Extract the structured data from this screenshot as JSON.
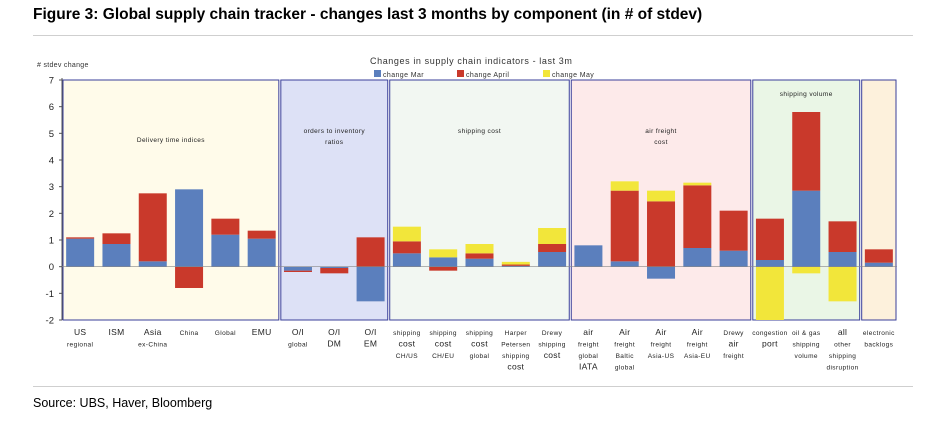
{
  "figure": {
    "title": "Figure 3: Global supply chain tracker - changes last 3 months by component (in # of stdev)",
    "source": "Source: UBS, Haver, Bloomberg"
  },
  "chart_data": {
    "type": "bar",
    "stacked": true,
    "title": "Changes in supply chain indicators - last 3m",
    "ylabel": "# stdev change",
    "xlabel": "",
    "ylim": [
      -2,
      7
    ],
    "yticks": [
      -2,
      -1,
      0,
      1,
      2,
      3,
      4,
      5,
      6,
      7
    ],
    "legend_position": "top-center",
    "categories": [
      "US regional",
      "ISM",
      "Asia ex-China",
      "China",
      "Global",
      "EMU",
      "O/I global",
      "O/I DM",
      "O/I EM",
      "shipping cost CH/US",
      "shipping cost CH/EU",
      "shipping cost global",
      "Harper Petersen shipping cost",
      "Drewy shipping cost",
      "air freight global IATA",
      "Air freight Baltic global",
      "Air freight Asia-US",
      "Air freight Asia-EU",
      "Drewy air freight",
      "congestion port",
      "oil & gas shipping volume",
      "all other shipping disruption",
      "electronic backlogs"
    ],
    "category_labels": [
      [
        "US",
        "regional"
      ],
      [
        "ISM"
      ],
      [
        "Asia",
        "ex-China"
      ],
      [
        "China"
      ],
      [
        "Global"
      ],
      [
        "EMU"
      ],
      [
        "O/I",
        "global"
      ],
      [
        "O/I",
        "DM"
      ],
      [
        "O/I",
        "EM"
      ],
      [
        "shipping",
        "cost",
        "CH/US"
      ],
      [
        "shipping",
        "cost",
        "CH/EU"
      ],
      [
        "shipping",
        "cost",
        "global"
      ],
      [
        "Harper",
        "Petersen",
        "shipping",
        "cost"
      ],
      [
        "Drewy",
        "shipping",
        "cost"
      ],
      [
        "air",
        "freight",
        "global",
        "IATA"
      ],
      [
        "Air",
        "freight",
        "Baltic",
        "global"
      ],
      [
        "Air",
        "freight",
        "Asia-US"
      ],
      [
        "Air",
        "freight",
        "Asia-EU"
      ],
      [
        "Drewy",
        "air",
        "freight"
      ],
      [
        "congestion",
        "port"
      ],
      [
        "oil & gas",
        "shipping",
        "volume"
      ],
      [
        "all",
        "other",
        "shipping",
        "disruption"
      ],
      [
        "electronic",
        "backlogs"
      ]
    ],
    "series": [
      {
        "name": "change Mar",
        "color": "#5b7fbd",
        "values": [
          1.05,
          0.85,
          0.2,
          2.9,
          1.2,
          1.05,
          -0.15,
          -0.05,
          -1.3,
          0.5,
          0.35,
          0.3,
          0.03,
          0.55,
          0.8,
          0.2,
          -0.45,
          0.7,
          0.6,
          0.25,
          2.85,
          0.55,
          0.15
        ]
      },
      {
        "name": "change April",
        "color": "#c9392b",
        "values": [
          0.05,
          0.4,
          2.55,
          -0.8,
          0.6,
          0.3,
          -0.05,
          -0.2,
          1.1,
          0.45,
          -0.15,
          0.2,
          0.05,
          0.3,
          0,
          2.65,
          2.45,
          2.35,
          1.5,
          1.55,
          2.95,
          1.15,
          0.5
        ]
      },
      {
        "name": "change May",
        "color": "#f2e63a",
        "values": [
          0,
          0,
          0,
          0,
          0,
          0,
          0,
          0,
          0,
          0.55,
          0.3,
          0.35,
          0.1,
          0.6,
          0,
          0.35,
          0.4,
          0.1,
          0,
          -2,
          -0.25,
          -1.3,
          0
        ]
      }
    ],
    "groups": [
      {
        "label": "Delivery time indices",
        "label_lines": [
          "Delivery time indices"
        ],
        "color": "#fffbea"
      },
      {
        "label": "orders to inventory ratios",
        "label_lines": [
          "orders to inventory",
          "ratios"
        ],
        "color": "#dde1f6"
      },
      {
        "label": "shipping cost",
        "label_lines": [
          "shipping cost"
        ],
        "color": "#f2f7f2"
      },
      {
        "label": "air freight cost",
        "label_lines": [
          "air freight",
          "cost"
        ],
        "color": "#fdeaea"
      },
      {
        "label": "shipping volume",
        "label_lines": [
          "shipping volume"
        ],
        "color": "#eaf6e6"
      },
      {
        "label": "",
        "label_lines": [],
        "color": "#fdf1dc"
      }
    ],
    "grid": false
  }
}
